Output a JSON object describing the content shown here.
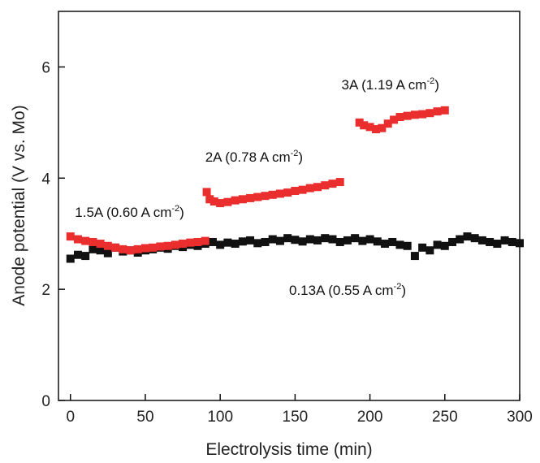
{
  "chart_data": {
    "type": "scatter",
    "title": "",
    "xlabel": "Electrolysis time (min)",
    "ylabel": "Anode potential (V vs. Mo)",
    "xlim": [
      -8,
      300
    ],
    "ylim": [
      0,
      7
    ],
    "xticks": [
      "0",
      "50",
      "100",
      "150",
      "200",
      "250",
      "300"
    ],
    "yticks": [
      "0",
      "2",
      "4",
      "6"
    ],
    "grid": false,
    "legend": "none",
    "series": [
      {
        "color": "#111111",
        "points": [
          [
            0,
            2.55
          ],
          [
            5,
            2.62
          ],
          [
            10,
            2.6
          ],
          [
            15,
            2.72
          ],
          [
            20,
            2.7
          ],
          [
            25,
            2.65
          ],
          [
            30,
            2.75
          ],
          [
            35,
            2.68
          ],
          [
            40,
            2.7
          ],
          [
            45,
            2.66
          ],
          [
            50,
            2.7
          ],
          [
            55,
            2.72
          ],
          [
            60,
            2.75
          ],
          [
            65,
            2.73
          ],
          [
            70,
            2.78
          ],
          [
            75,
            2.76
          ],
          [
            80,
            2.8
          ],
          [
            85,
            2.78
          ],
          [
            90,
            2.82
          ],
          [
            95,
            2.85
          ],
          [
            100,
            2.8
          ],
          [
            105,
            2.84
          ],
          [
            110,
            2.82
          ],
          [
            115,
            2.86
          ],
          [
            120,
            2.88
          ],
          [
            125,
            2.83
          ],
          [
            130,
            2.85
          ],
          [
            135,
            2.9
          ],
          [
            140,
            2.87
          ],
          [
            145,
            2.92
          ],
          [
            150,
            2.89
          ],
          [
            155,
            2.86
          ],
          [
            160,
            2.9
          ],
          [
            165,
            2.88
          ],
          [
            170,
            2.92
          ],
          [
            175,
            2.9
          ],
          [
            180,
            2.85
          ],
          [
            185,
            2.88
          ],
          [
            190,
            2.92
          ],
          [
            195,
            2.87
          ],
          [
            200,
            2.9
          ],
          [
            205,
            2.86
          ],
          [
            210,
            2.82
          ],
          [
            215,
            2.85
          ],
          [
            220,
            2.8
          ],
          [
            225,
            2.78
          ],
          [
            230,
            2.6
          ],
          [
            235,
            2.75
          ],
          [
            240,
            2.7
          ],
          [
            245,
            2.8
          ],
          [
            250,
            2.78
          ],
          [
            255,
            2.85
          ],
          [
            260,
            2.9
          ],
          [
            265,
            2.95
          ],
          [
            270,
            2.92
          ],
          [
            275,
            2.88
          ],
          [
            280,
            2.85
          ],
          [
            285,
            2.82
          ],
          [
            290,
            2.88
          ],
          [
            295,
            2.85
          ],
          [
            300,
            2.83
          ]
        ]
      },
      {
        "color": "#ea2e2e",
        "points": [
          [
            0,
            2.95
          ],
          [
            5,
            2.9
          ],
          [
            10,
            2.87
          ],
          [
            15,
            2.85
          ],
          [
            20,
            2.82
          ],
          [
            25,
            2.78
          ],
          [
            30,
            2.75
          ],
          [
            35,
            2.72
          ],
          [
            40,
            2.7
          ],
          [
            45,
            2.72
          ],
          [
            50,
            2.74
          ],
          [
            55,
            2.75
          ],
          [
            60,
            2.77
          ],
          [
            65,
            2.78
          ],
          [
            70,
            2.8
          ],
          [
            75,
            2.82
          ],
          [
            80,
            2.84
          ],
          [
            85,
            2.85
          ],
          [
            90,
            2.87
          ]
        ]
      },
      {
        "color": "#ea2e2e",
        "points": [
          [
            91,
            3.75
          ],
          [
            93,
            3.62
          ],
          [
            96,
            3.58
          ],
          [
            100,
            3.55
          ],
          [
            105,
            3.57
          ],
          [
            110,
            3.6
          ],
          [
            115,
            3.62
          ],
          [
            120,
            3.64
          ],
          [
            125,
            3.66
          ],
          [
            130,
            3.68
          ],
          [
            135,
            3.7
          ],
          [
            140,
            3.72
          ],
          [
            145,
            3.74
          ],
          [
            150,
            3.77
          ],
          [
            155,
            3.79
          ],
          [
            160,
            3.82
          ],
          [
            165,
            3.84
          ],
          [
            170,
            3.87
          ],
          [
            175,
            3.9
          ],
          [
            180,
            3.93
          ]
        ]
      },
      {
        "color": "#ea2e2e",
        "points": [
          [
            193,
            5.0
          ],
          [
            196,
            4.95
          ],
          [
            200,
            4.92
          ],
          [
            204,
            4.88
          ],
          [
            208,
            4.9
          ],
          [
            212,
            4.98
          ],
          [
            216,
            5.05
          ],
          [
            220,
            5.1
          ],
          [
            225,
            5.12
          ],
          [
            230,
            5.14
          ],
          [
            235,
            5.15
          ],
          [
            240,
            5.17
          ],
          [
            245,
            5.2
          ],
          [
            250,
            5.22
          ]
        ]
      }
    ],
    "annotations": [
      {
        "text": "1.5A (0.60 A cm",
        "sup": "-2",
        "close": ")",
        "x": 3,
        "y": 3.3
      },
      {
        "text": "2A (0.78 A cm",
        "sup": "-2",
        "close": ")",
        "x": 90,
        "y": 4.3
      },
      {
        "text": "3A (1.19 A cm",
        "sup": "-2",
        "close": ")",
        "x": 181,
        "y": 5.6
      },
      {
        "text": "0.13A (0.55 A cm",
        "sup": "-2",
        "close": ")",
        "x": 146,
        "y": 1.9
      }
    ]
  }
}
